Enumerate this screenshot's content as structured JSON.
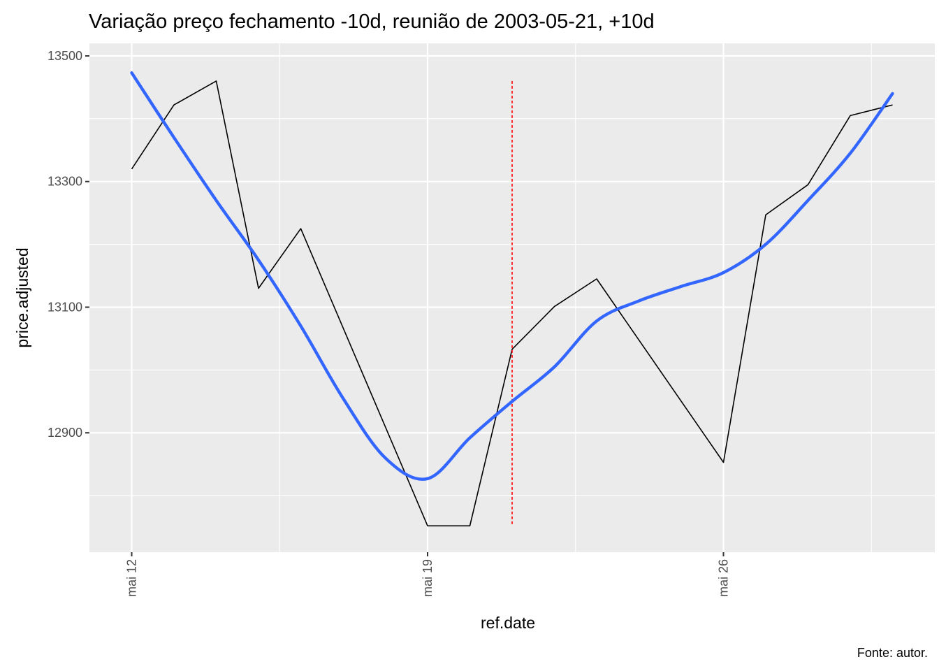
{
  "chart_data": {
    "type": "line",
    "title": "Variação preço fechamento -10d, reunião de 2003-05-21, +10d",
    "xlabel": "ref.date",
    "ylabel": "price.adjusted",
    "caption": "Fonte: autor.",
    "x_ticks": [
      {
        "date": "2003-05-12",
        "label": "mai 12"
      },
      {
        "date": "2003-05-19",
        "label": "mai 19"
      },
      {
        "date": "2003-05-26",
        "label": "mai 26"
      }
    ],
    "y_ticks": [
      12900,
      13100,
      13300,
      13500
    ],
    "xlim": [
      "2003-05-11",
      "2003-05-31"
    ],
    "ylim": [
      12710,
      13520
    ],
    "grid": true,
    "colors": {
      "panel_background": "#ebebeb",
      "grid": "#ffffff",
      "price_line": "#000000",
      "smooth_line": "#3366ff",
      "meeting_line": "#ff0000"
    },
    "series": [
      {
        "points": [
          {
            "x": "2003-05-12",
            "y": 13320
          },
          {
            "x": "2003-05-13",
            "y": 13422
          },
          {
            "x": "2003-05-14",
            "y": 13460
          },
          {
            "x": "2003-05-15",
            "y": 13130
          },
          {
            "x": "2003-05-16",
            "y": 13225
          },
          {
            "x": "2003-05-19",
            "y": 12752
          },
          {
            "x": "2003-05-20",
            "y": 12752
          },
          {
            "x": "2003-05-21",
            "y": 13033
          },
          {
            "x": "2003-05-22",
            "y": 13101
          },
          {
            "x": "2003-05-23",
            "y": 13145
          },
          {
            "x": "2003-05-26",
            "y": 12853
          },
          {
            "x": "2003-05-27",
            "y": 13247
          },
          {
            "x": "2003-05-28",
            "y": 13295
          },
          {
            "x": "2003-05-29",
            "y": 13405
          },
          {
            "x": "2003-05-30",
            "y": 13422
          }
        ]
      },
      {
        "smooth": true,
        "points": [
          {
            "x": "2003-05-12",
            "y": 13473
          },
          {
            "x": "2003-05-13",
            "y": 13370
          },
          {
            "x": "2003-05-14",
            "y": 13270
          },
          {
            "x": "2003-05-15",
            "y": 13175
          },
          {
            "x": "2003-05-16",
            "y": 13070
          },
          {
            "x": "2003-05-17",
            "y": 12955
          },
          {
            "x": "2003-05-18",
            "y": 12860
          },
          {
            "x": "2003-05-19",
            "y": 12827
          },
          {
            "x": "2003-05-20",
            "y": 12892
          },
          {
            "x": "2003-05-21",
            "y": 12950
          },
          {
            "x": "2003-05-22",
            "y": 13005
          },
          {
            "x": "2003-05-23",
            "y": 13078
          },
          {
            "x": "2003-05-24",
            "y": 13110
          },
          {
            "x": "2003-05-25",
            "y": 13133
          },
          {
            "x": "2003-05-26",
            "y": 13155
          },
          {
            "x": "2003-05-27",
            "y": 13200
          },
          {
            "x": "2003-05-28",
            "y": 13270
          },
          {
            "x": "2003-05-29",
            "y": 13345
          },
          {
            "x": "2003-05-30",
            "y": 13440
          }
        ]
      }
    ],
    "vline": {
      "x": "2003-05-21",
      "ymin": 12752,
      "ymax": 13460
    }
  }
}
